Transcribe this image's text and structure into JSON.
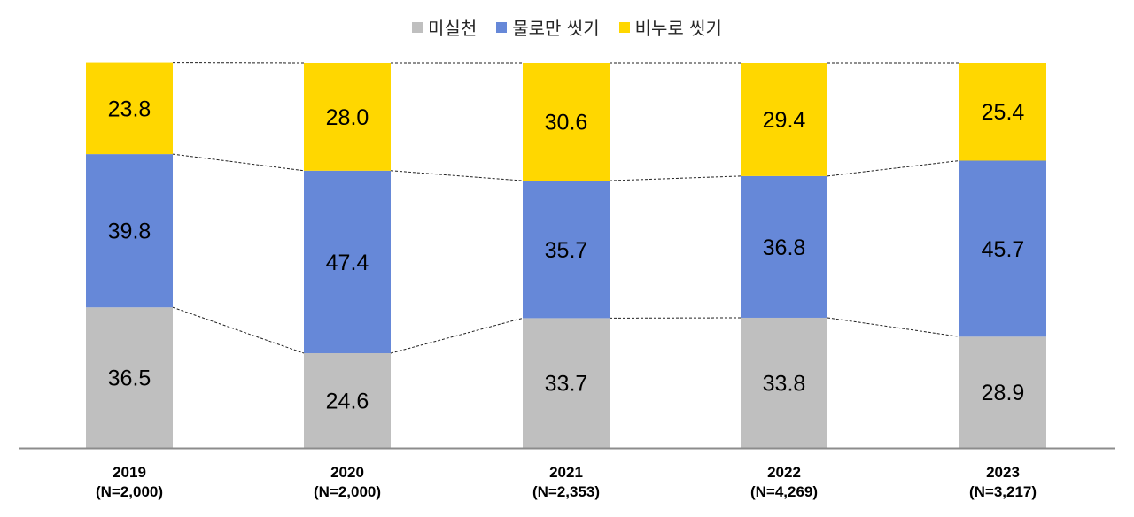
{
  "chart_data": {
    "type": "bar",
    "stacked": true,
    "normalized_percent": true,
    "categories": [
      "2019\n(N=2,000)",
      "2020\n(N=2,000)",
      "2021\n(N=2,353)",
      "2022\n(N=4,269)",
      "2023\n(N=3,217)"
    ],
    "category_year": [
      "2019",
      "2020",
      "2021",
      "2022",
      "2023"
    ],
    "category_n": [
      "(N=2,000)",
      "(N=2,000)",
      "(N=2,353)",
      "(N=4,269)",
      "(N=3,217)"
    ],
    "series": [
      {
        "name": "미실천",
        "color": "#bfbfbf",
        "values": [
          36.5,
          24.6,
          33.7,
          33.8,
          28.9
        ],
        "labels": [
          "36.5",
          "24.6",
          "33.7",
          "33.8",
          "28.9"
        ]
      },
      {
        "name": "물로만 씻기",
        "color": "#6688d8",
        "values": [
          39.8,
          47.4,
          35.7,
          36.8,
          45.7
        ],
        "labels": [
          "39.8",
          "47.4",
          "35.7",
          "36.8",
          "45.7"
        ]
      },
      {
        "name": "비누로 씻기",
        "color": "#ffd700",
        "values": [
          23.8,
          28.0,
          30.6,
          29.4,
          25.4
        ],
        "labels": [
          "23.8",
          "28.0",
          "30.6",
          "29.4",
          "25.4"
        ]
      }
    ],
    "ylim": [
      0,
      100
    ],
    "grid": false,
    "legend_position": "top-center",
    "series_lines": "dashed"
  }
}
